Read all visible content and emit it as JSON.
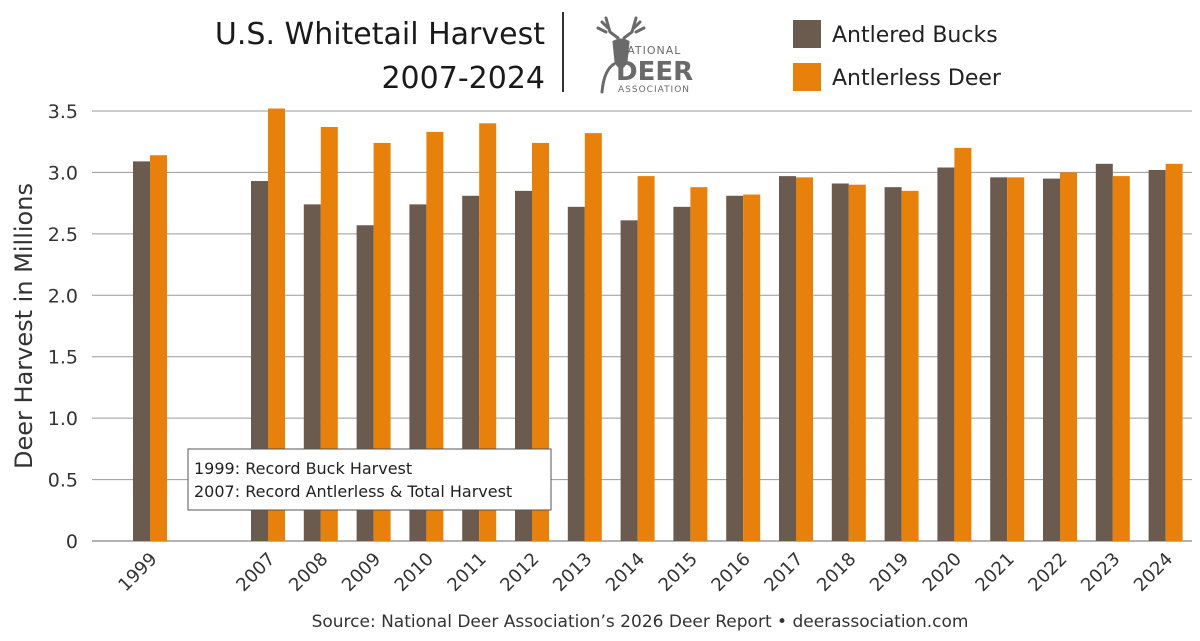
{
  "colors": {
    "bucks": "#6b5b4e",
    "antlerless": "#e8800c",
    "grid": "#9a9a9a"
  },
  "logo": {
    "top": "NATIONAL",
    "main": "DEER",
    "bottom": "ASSOCIATION",
    "icon": "deer-head-icon"
  },
  "source": "Source: National Deer Association’s 2026 Deer Report • deerassociation.com",
  "chart_data": {
    "type": "bar",
    "title": "U.S. Whitetail Harvest",
    "subtitle": "2007-2024",
    "xlabel": "",
    "ylabel": "Deer Harvest in Millions",
    "ylim": [
      0,
      3.5
    ],
    "yticks": [
      "0",
      "0.5",
      "1.0",
      "1.5",
      "2.0",
      "2.5",
      "3.0",
      "3.5"
    ],
    "grid": true,
    "legend": "top-right",
    "categories": [
      "1999",
      "2007",
      "2008",
      "2009",
      "2010",
      "2011",
      "2012",
      "2013",
      "2014",
      "2015",
      "2016",
      "2017",
      "2018",
      "2019",
      "2020",
      "2021",
      "2022",
      "2023",
      "2024"
    ],
    "series": [
      {
        "name": "Antlered Bucks",
        "values": [
          3.09,
          2.93,
          2.74,
          2.57,
          2.74,
          2.81,
          2.85,
          2.72,
          2.61,
          2.72,
          2.81,
          2.97,
          2.91,
          2.88,
          3.04,
          2.96,
          2.95,
          3.07,
          3.02
        ]
      },
      {
        "name": "Antlerless Deer",
        "values": [
          3.14,
          3.52,
          3.37,
          3.24,
          3.33,
          3.4,
          3.24,
          3.32,
          2.97,
          2.88,
          2.82,
          2.96,
          2.9,
          2.85,
          3.2,
          2.96,
          3.0,
          2.97,
          3.07
        ]
      }
    ],
    "annotation": [
      "1999: Record Buck Harvest",
      "2007: Record Antlerless & Total Harvest"
    ]
  }
}
